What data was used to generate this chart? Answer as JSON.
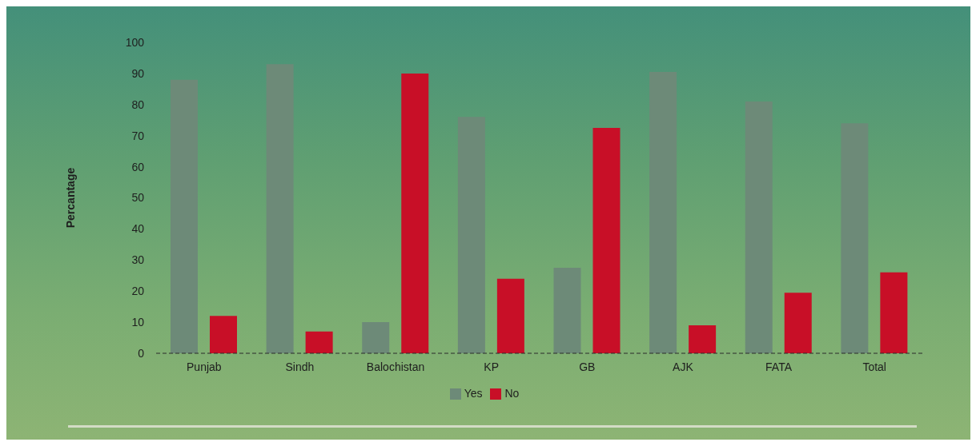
{
  "chart_data": {
    "type": "bar",
    "ylabel": "Percantage",
    "categories": [
      "Punjab",
      "Sindh",
      "Balochistan",
      "KP",
      "GB",
      "AJK",
      "FATA",
      "Total"
    ],
    "series": [
      {
        "name": "Yes",
        "color": "#6d8a78",
        "values": [
          88,
          93,
          10,
          76,
          27.5,
          90.5,
          81,
          74
        ]
      },
      {
        "name": "No",
        "color": "#c80f27",
        "values": [
          12,
          7,
          90,
          24,
          72.5,
          9,
          19.5,
          26
        ]
      }
    ],
    "ylim": [
      0,
      100
    ],
    "yticks": [
      0,
      10,
      20,
      30,
      40,
      50,
      60,
      70,
      80,
      90,
      100
    ],
    "legend": "bottom"
  }
}
